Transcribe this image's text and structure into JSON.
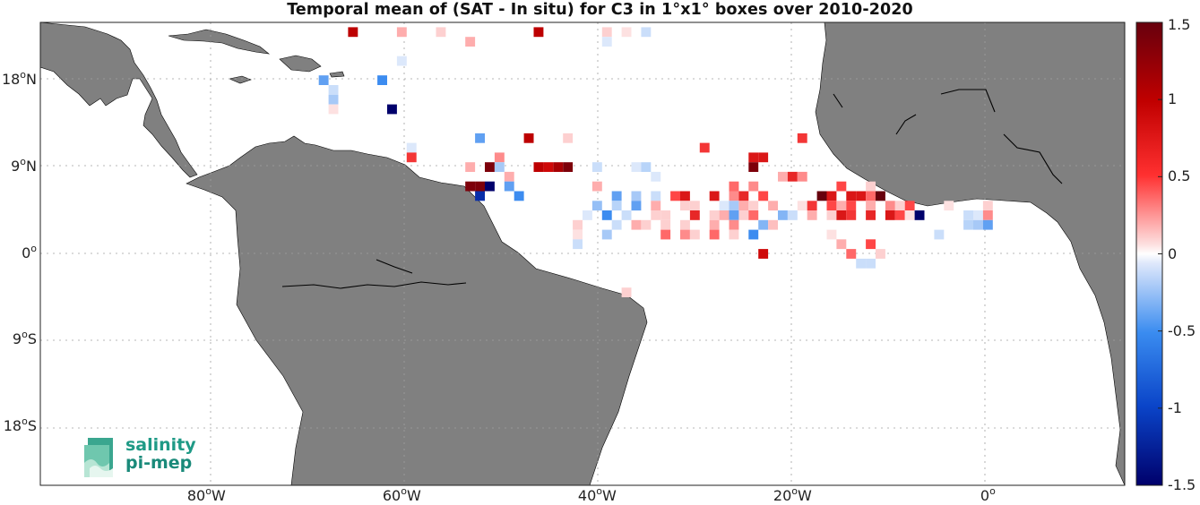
{
  "title": "Temporal mean of (SAT - In situ) for C3 in 1°x1° boxes over 2010-2020",
  "lat_labels": [
    {
      "value": 18,
      "text": "18",
      "deg": "o",
      "hem": "N"
    },
    {
      "value": 9,
      "text": "9",
      "deg": "o",
      "hem": "N"
    },
    {
      "value": 0,
      "text": "0",
      "deg": "o",
      "hem": ""
    },
    {
      "value": -9,
      "text": "9",
      "deg": "o",
      "hem": "S"
    },
    {
      "value": -18,
      "text": "18",
      "deg": "o",
      "hem": "S"
    }
  ],
  "lon_labels": [
    {
      "value": -80,
      "text": "80",
      "deg": "o",
      "hem": "W"
    },
    {
      "value": -60,
      "text": "60",
      "deg": "o",
      "hem": "W"
    },
    {
      "value": -40,
      "text": "40",
      "deg": "o",
      "hem": "W"
    },
    {
      "value": -20,
      "text": "20",
      "deg": "o",
      "hem": "W"
    },
    {
      "value": 0,
      "text": "0",
      "deg": "o",
      "hem": ""
    }
  ],
  "colorbar": {
    "min": -1.5,
    "max": 1.5,
    "ticks": [
      {
        "value": 1.5,
        "label": "1.5"
      },
      {
        "value": 1,
        "label": "1"
      },
      {
        "value": 0.5,
        "label": "0.5"
      },
      {
        "value": 0,
        "label": "0"
      },
      {
        "value": -0.5,
        "label": "-0.5"
      },
      {
        "value": -1,
        "label": "-1"
      },
      {
        "value": -1.5,
        "label": "-1.5"
      }
    ]
  },
  "colors": {
    "land": "#808080",
    "coast": "#000000",
    "grid": "#9a9a9a"
  },
  "logo": {
    "line1": "salinity",
    "line2": "pi-mep"
  },
  "chart_data": {
    "type": "heatmap",
    "xlim": [
      -97,
      14
    ],
    "ylim": [
      -24,
      24
    ],
    "cell_size_deg": 1,
    "cells": [
      [
        -65,
        23,
        1.1
      ],
      [
        -46,
        23,
        1.1
      ],
      [
        -60,
        23,
        0.3
      ],
      [
        -56,
        23,
        0.2
      ],
      [
        -39,
        23,
        0.2
      ],
      [
        -37,
        23,
        0.15
      ],
      [
        -35,
        23,
        -0.2
      ],
      [
        -53,
        22,
        0.3
      ],
      [
        -39,
        22,
        -0.15
      ],
      [
        -60,
        20,
        -0.15
      ],
      [
        -68,
        18,
        -0.5
      ],
      [
        -62,
        18,
        -0.6
      ],
      [
        -67,
        17,
        -0.2
      ],
      [
        -67,
        16,
        -0.3
      ],
      [
        -61,
        15,
        -1.5
      ],
      [
        -67,
        15,
        0.15
      ],
      [
        -52,
        12,
        -0.5
      ],
      [
        -47,
        12,
        1.1
      ],
      [
        -43,
        12,
        0.2
      ],
      [
        -29,
        11,
        0.7
      ],
      [
        -59,
        11,
        -0.15
      ],
      [
        -19,
        12,
        0.7
      ],
      [
        -59,
        10,
        0.7
      ],
      [
        -50,
        10,
        0.4
      ],
      [
        -24,
        10,
        0.9
      ],
      [
        -23,
        10,
        0.9
      ],
      [
        -53,
        9,
        0.3
      ],
      [
        -51,
        9,
        1.4
      ],
      [
        -50,
        9,
        -0.3
      ],
      [
        -46,
        9,
        1.1
      ],
      [
        -45,
        9,
        1.0
      ],
      [
        -44,
        9,
        1.2
      ],
      [
        -43,
        9,
        1.4
      ],
      [
        -40,
        9,
        -0.2
      ],
      [
        -36,
        9,
        -0.15
      ],
      [
        -35,
        9,
        -0.25
      ],
      [
        -24,
        9,
        1.4
      ],
      [
        -49,
        8,
        0.3
      ],
      [
        -34,
        8,
        -0.15
      ],
      [
        -21,
        8,
        0.3
      ],
      [
        -20,
        8,
        0.8
      ],
      [
        -19,
        8,
        0.4
      ],
      [
        -53,
        7,
        1.4
      ],
      [
        -52,
        7,
        1.4
      ],
      [
        -51,
        7,
        -1.5
      ],
      [
        -49,
        7,
        -0.5
      ],
      [
        -40,
        7,
        0.3
      ],
      [
        -26,
        7,
        0.5
      ],
      [
        -24,
        7,
        0.4
      ],
      [
        -15,
        7,
        0.6
      ],
      [
        -12,
        7,
        0.2
      ],
      [
        -52,
        6,
        -1.2
      ],
      [
        -48,
        6,
        -0.6
      ],
      [
        -38,
        6,
        -0.5
      ],
      [
        -36,
        6,
        -0.3
      ],
      [
        -34,
        6,
        -0.2
      ],
      [
        -32,
        6,
        0.6
      ],
      [
        -31,
        6,
        0.9
      ],
      [
        -28,
        6,
        0.9
      ],
      [
        -26,
        6,
        0.4
      ],
      [
        -25,
        6,
        0.8
      ],
      [
        -23,
        6,
        0.6
      ],
      [
        -17,
        6,
        1.5
      ],
      [
        -16,
        6,
        0.9
      ],
      [
        -14,
        6,
        0.9
      ],
      [
        -13,
        6,
        0.9
      ],
      [
        -12,
        6,
        0.5
      ],
      [
        -11,
        6,
        1.5
      ],
      [
        -40,
        5,
        -0.35
      ],
      [
        -38,
        5,
        -0.25
      ],
      [
        -36,
        5,
        -0.5
      ],
      [
        -34,
        5,
        0.3
      ],
      [
        -31,
        5,
        0.2
      ],
      [
        -30,
        5,
        0.2
      ],
      [
        -27,
        5,
        -0.15
      ],
      [
        -26,
        5,
        -0.3
      ],
      [
        -25,
        5,
        0.3
      ],
      [
        -24,
        5,
        0.2
      ],
      [
        -22,
        5,
        0.3
      ],
      [
        -19,
        5,
        0.15
      ],
      [
        -18,
        5,
        0.7
      ],
      [
        -16,
        5,
        0.6
      ],
      [
        -15,
        5,
        0.3
      ],
      [
        -14,
        5,
        0.6
      ],
      [
        -12,
        5,
        0.3
      ],
      [
        -10,
        5,
        0.4
      ],
      [
        -9,
        5,
        0.2
      ],
      [
        -8,
        5,
        0.6
      ],
      [
        0,
        5,
        0.2
      ],
      [
        -4,
        5,
        0.15
      ],
      [
        -41,
        4,
        -0.15
      ],
      [
        -39,
        4,
        -0.6
      ],
      [
        -37,
        4,
        -0.2
      ],
      [
        -34,
        4,
        0.2
      ],
      [
        -33,
        4,
        0.2
      ],
      [
        -30,
        4,
        0.8
      ],
      [
        -28,
        4,
        0.2
      ],
      [
        -27,
        4,
        0.3
      ],
      [
        -25,
        4,
        0.2
      ],
      [
        -26,
        4,
        -0.5
      ],
      [
        -24,
        4,
        0.5
      ],
      [
        -21,
        4,
        -0.4
      ],
      [
        -20,
        4,
        -0.2
      ],
      [
        -18,
        4,
        0.3
      ],
      [
        -16,
        4,
        0.2
      ],
      [
        -15,
        4,
        0.9
      ],
      [
        -14,
        4,
        0.7
      ],
      [
        -12,
        4,
        0.8
      ],
      [
        -10,
        4,
        0.9
      ],
      [
        -9,
        4,
        0.6
      ],
      [
        -8,
        4,
        0.15
      ],
      [
        -2,
        4,
        -0.2
      ],
      [
        -1,
        4,
        -0.15
      ],
      [
        0,
        4,
        0.4
      ],
      [
        -7,
        4,
        -1.5
      ],
      [
        -42,
        3,
        0.2
      ],
      [
        -38,
        3,
        -0.2
      ],
      [
        -36,
        3,
        0.3
      ],
      [
        -35,
        3,
        0.2
      ],
      [
        -33,
        3,
        0.2
      ],
      [
        -31,
        3,
        0.2
      ],
      [
        -28,
        3,
        0.3
      ],
      [
        -26,
        3,
        0.4
      ],
      [
        -23,
        3,
        -0.4
      ],
      [
        -22,
        3,
        0.25
      ],
      [
        -1,
        3,
        -0.3
      ],
      [
        -2,
        3,
        -0.25
      ],
      [
        0,
        3,
        -0.5
      ],
      [
        -42,
        2,
        0.15
      ],
      [
        -39,
        2,
        -0.3
      ],
      [
        -33,
        2,
        0.5
      ],
      [
        -31,
        2,
        0.4
      ],
      [
        -30,
        2,
        0.2
      ],
      [
        -28,
        2,
        0.5
      ],
      [
        -26,
        2,
        0.2
      ],
      [
        -24,
        2,
        -0.6
      ],
      [
        -16,
        2,
        0.15
      ],
      [
        -5,
        2,
        -0.2
      ],
      [
        -42,
        1,
        -0.2
      ],
      [
        -15,
        1,
        0.3
      ],
      [
        -12,
        1,
        0.6
      ],
      [
        -23,
        0,
        1.0
      ],
      [
        -14,
        0,
        0.5
      ],
      [
        -11,
        0,
        0.2
      ],
      [
        -13,
        -1,
        -0.2
      ],
      [
        -12,
        -1,
        -0.2
      ],
      [
        -37,
        -4,
        0.2
      ]
    ]
  }
}
